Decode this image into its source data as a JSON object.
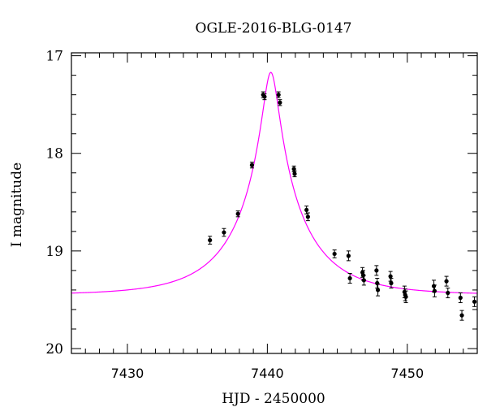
{
  "chart_data": {
    "type": "scatter",
    "title": "OGLE-2016-BLG-0147",
    "xlabel": "HJD - 2450000",
    "ylabel": "I magnitude",
    "xlim": [
      7426,
      7455
    ],
    "ylim": [
      20.05,
      16.97
    ],
    "y_inverted": true,
    "x_ticks": [
      7430,
      7440,
      7450
    ],
    "y_ticks": [
      17,
      18,
      19,
      20
    ],
    "grid": false,
    "colors": {
      "model": "#ff00ff",
      "points": "#000000"
    },
    "model": {
      "name": "",
      "t0": 7440.25,
      "peak_mag": 17.17,
      "baseline_mag": 19.45,
      "note_shape": "magnification curve"
    },
    "series": [
      {
        "name": "",
        "x": [
          7435.9,
          7436.9,
          7437.9,
          7438.9,
          7439.7,
          7439.8,
          7440.8,
          7440.9,
          7441.9,
          7441.95,
          7442.8,
          7442.9,
          7444.8,
          7445.8,
          7445.9,
          7446.8,
          7446.85,
          7446.9,
          7447.8,
          7447.85,
          7447.9,
          7448.8,
          7448.85,
          7449.8,
          7449.85,
          7449.9,
          7451.9,
          7451.95,
          7452.8,
          7452.9,
          7453.8,
          7453.9,
          7454.8
        ],
        "y": [
          18.89,
          18.81,
          18.62,
          18.12,
          17.4,
          17.42,
          17.4,
          17.48,
          18.16,
          18.21,
          18.58,
          18.65,
          19.03,
          19.05,
          19.28,
          19.22,
          19.25,
          19.3,
          19.2,
          19.33,
          19.4,
          19.26,
          19.33,
          19.42,
          19.45,
          19.47,
          19.36,
          19.41,
          19.31,
          19.43,
          19.48,
          19.66,
          19.52
        ],
        "err": [
          0.04,
          0.04,
          0.03,
          0.03,
          0.03,
          0.03,
          0.03,
          0.03,
          0.03,
          0.03,
          0.04,
          0.04,
          0.04,
          0.05,
          0.05,
          0.05,
          0.05,
          0.05,
          0.05,
          0.05,
          0.06,
          0.05,
          0.05,
          0.06,
          0.06,
          0.06,
          0.06,
          0.06,
          0.05,
          0.05,
          0.05,
          0.05,
          0.05
        ]
      }
    ]
  }
}
